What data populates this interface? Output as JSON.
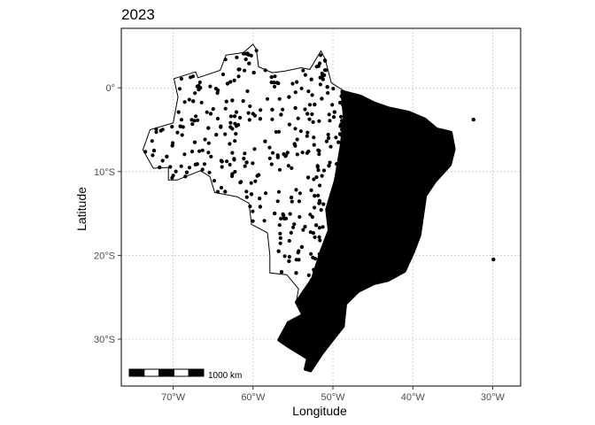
{
  "title": "2023",
  "axes": {
    "xlabel": "Longitude",
    "ylabel": "Latitude",
    "x_ticks": [
      {
        "value": -70,
        "label": "70°W"
      },
      {
        "value": -60,
        "label": "60°W"
      },
      {
        "value": -50,
        "label": "50°W"
      },
      {
        "value": -40,
        "label": "40°W"
      },
      {
        "value": -30,
        "label": "30°W"
      }
    ],
    "y_ticks": [
      {
        "value": 0,
        "label": "0°"
      },
      {
        "value": -10,
        "label": "10°S"
      },
      {
        "value": -20,
        "label": "20°S"
      },
      {
        "value": -30,
        "label": "30°S"
      }
    ],
    "xlim": [
      -76.5,
      -26.5
    ],
    "ylim": [
      -35.6,
      7.1
    ],
    "grid": true
  },
  "scale_bar": {
    "label": "1000 km"
  },
  "colors": {
    "points": "#000000",
    "outline": "#000000",
    "grid": "#c8c8c8",
    "tick_text": "#4d4d4d"
  },
  "chart_data": {
    "type": "scatter",
    "x_name": "Longitude",
    "y_name": "Latitude",
    "density_note": "dense point cluster covers eastern and southern Brazil",
    "outline": [
      [
        -73.8,
        -7.4
      ],
      [
        -72.9,
        -5.0
      ],
      [
        -70.0,
        -4.2
      ],
      [
        -69.4,
        -1.1
      ],
      [
        -69.9,
        1.1
      ],
      [
        -67.2,
        1.9
      ],
      [
        -66.9,
        1.2
      ],
      [
        -64.1,
        2.1
      ],
      [
        -63.4,
        3.9
      ],
      [
        -61.2,
        4.2
      ],
      [
        -60.0,
        5.2
      ],
      [
        -59.6,
        4.6
      ],
      [
        -59.3,
        2.5
      ],
      [
        -57.6,
        1.8
      ],
      [
        -56.0,
        2.0
      ],
      [
        -54.0,
        2.4
      ],
      [
        -52.9,
        2.2
      ],
      [
        -51.5,
        4.4
      ],
      [
        -51.0,
        3.5
      ],
      [
        -50.2,
        0.6
      ],
      [
        -48.4,
        -0.5
      ],
      [
        -46.5,
        -1.0
      ],
      [
        -44.8,
        -1.8
      ],
      [
        -43.0,
        -2.4
      ],
      [
        -40.5,
        -2.9
      ],
      [
        -38.5,
        -3.7
      ],
      [
        -37.0,
        -4.9
      ],
      [
        -35.2,
        -5.3
      ],
      [
        -34.8,
        -7.3
      ],
      [
        -35.3,
        -9.2
      ],
      [
        -37.2,
        -11.2
      ],
      [
        -38.4,
        -12.9
      ],
      [
        -39.1,
        -17.6
      ],
      [
        -39.9,
        -19.6
      ],
      [
        -41.0,
        -21.9
      ],
      [
        -43.1,
        -23.0
      ],
      [
        -44.9,
        -23.4
      ],
      [
        -46.8,
        -24.3
      ],
      [
        -48.4,
        -25.8
      ],
      [
        -48.7,
        -28.5
      ],
      [
        -50.2,
        -30.3
      ],
      [
        -51.4,
        -31.8
      ],
      [
        -52.8,
        -33.8
      ],
      [
        -53.5,
        -33.6
      ],
      [
        -53.2,
        -32.3
      ],
      [
        -55.6,
        -30.9
      ],
      [
        -56.8,
        -30.1
      ],
      [
        -55.6,
        -28.0
      ],
      [
        -53.8,
        -27.1
      ],
      [
        -54.6,
        -25.6
      ],
      [
        -54.3,
        -24.0
      ],
      [
        -55.8,
        -22.3
      ],
      [
        -57.9,
        -22.1
      ],
      [
        -57.9,
        -20.0
      ],
      [
        -58.2,
        -17.3
      ],
      [
        -60.2,
        -16.3
      ],
      [
        -60.5,
        -13.8
      ],
      [
        -62.0,
        -13.0
      ],
      [
        -64.8,
        -12.5
      ],
      [
        -65.4,
        -10.6
      ],
      [
        -66.6,
        -9.9
      ],
      [
        -69.5,
        -11.0
      ],
      [
        -70.6,
        -11.0
      ],
      [
        -70.6,
        -9.5
      ],
      [
        -72.5,
        -9.6
      ],
      [
        -73.8,
        -7.4
      ]
    ],
    "points": [
      [
        -32.4,
        -3.8
      ],
      [
        -29.9,
        -20.5
      ],
      [
        -60.5,
        2.9
      ],
      [
        -61.8,
        2.2
      ],
      [
        -60.9,
        3.4
      ],
      [
        -60.7,
        4.1
      ],
      [
        -59.9,
        1.8
      ],
      [
        -63.2,
        0.5
      ],
      [
        -64.4,
        -0.3
      ],
      [
        -66.8,
        -0.2
      ],
      [
        -67.5,
        -1.6
      ],
      [
        -65.3,
        -3.1
      ],
      [
        -62.3,
        -3.4
      ],
      [
        -60.0,
        -3.1
      ],
      [
        -59.1,
        -3.7
      ],
      [
        -57.6,
        -2.6
      ],
      [
        -56.5,
        -3.2
      ],
      [
        -54.7,
        -2.4
      ],
      [
        -53.2,
        -3.1
      ],
      [
        -52.3,
        -2.0
      ],
      [
        -51.4,
        -1.3
      ],
      [
        -50.7,
        0.1
      ],
      [
        -51.1,
        1.5
      ],
      [
        -51.8,
        2.6
      ],
      [
        -52.7,
        1.0
      ],
      [
        -55.5,
        -1.1
      ],
      [
        -57.0,
        0.6
      ],
      [
        -62.6,
        -1.5
      ],
      [
        -64.6,
        -5.6
      ],
      [
        -67.3,
        -6.5
      ],
      [
        -70.1,
        -6.9
      ],
      [
        -72.4,
        -7.5
      ],
      [
        -71.7,
        -9.5
      ],
      [
        -68.3,
        -10.1
      ],
      [
        -67.0,
        -9.1
      ],
      [
        -63.9,
        -8.8
      ],
      [
        -62.6,
        -10.3
      ],
      [
        -61.6,
        -11.3
      ],
      [
        -63.5,
        -12.4
      ],
      [
        -60.2,
        -12.7
      ],
      [
        -59.1,
        -14.2
      ],
      [
        -57.3,
        -15.0
      ],
      [
        -56.1,
        -15.6
      ],
      [
        -55.2,
        -13.1
      ],
      [
        -53.1,
        -10.7
      ],
      [
        -52.3,
        -12.9
      ],
      [
        -50.5,
        -9.3
      ],
      [
        -49.3,
        -6.5
      ],
      [
        -48.5,
        -4.9
      ],
      [
        -47.6,
        -7.1
      ],
      [
        -46.1,
        -9.2
      ],
      [
        -44.5,
        -10.5
      ],
      [
        -43.2,
        -7.4
      ],
      [
        -42.3,
        -5.1
      ],
      [
        -40.9,
        -3.6
      ],
      [
        -39.5,
        -4.3
      ],
      [
        -38.2,
        -6.6
      ],
      [
        -36.4,
        -7.2
      ],
      [
        -35.6,
        -8.4
      ],
      [
        -37.1,
        -10.0
      ],
      [
        -38.9,
        -12.6
      ],
      [
        -40.1,
        -14.9
      ],
      [
        -41.8,
        -17.0
      ],
      [
        -42.9,
        -19.5
      ],
      [
        -44.4,
        -21.0
      ],
      [
        -46.3,
        -23.1
      ],
      [
        -47.5,
        -22.0
      ],
      [
        -48.9,
        -20.3
      ],
      [
        -50.3,
        -22.5
      ],
      [
        -51.7,
        -24.8
      ],
      [
        -49.7,
        -26.9
      ],
      [
        -51.4,
        -28.6
      ],
      [
        -52.9,
        -29.4
      ],
      [
        -54.5,
        -29.8
      ],
      [
        -55.8,
        -30.5
      ],
      [
        -53.4,
        -31.6
      ],
      [
        -52.6,
        -33.0
      ],
      [
        -50.6,
        -18.5
      ],
      [
        -52.1,
        -16.4
      ],
      [
        -53.9,
        -19.0
      ],
      [
        -55.5,
        -20.7
      ],
      [
        -56.8,
        -19.5
      ],
      [
        -54.6,
        -22.1
      ],
      [
        -47.9,
        -15.8
      ],
      [
        -46.2,
        -14.3
      ],
      [
        -44.7,
        -16.6
      ],
      [
        -43.5,
        -13.0
      ],
      [
        -45.6,
        -18.9
      ],
      [
        -42.7,
        -22.6
      ],
      [
        -40.5,
        -20.4
      ],
      [
        -39.2,
        -16.1
      ],
      [
        -37.8,
        -9.6
      ],
      [
        -36.2,
        -5.8
      ],
      [
        -40.3,
        -9.1
      ],
      [
        -41.5,
        -11.8
      ],
      [
        -45.1,
        -5.9
      ],
      [
        -46.9,
        -2.5
      ],
      [
        -48.1,
        -1.4
      ],
      [
        -49.8,
        -2.9
      ],
      [
        -58.5,
        -6.4
      ],
      [
        -56.9,
        -8.3
      ],
      [
        -54.8,
        -6.7
      ],
      [
        -60.8,
        -8.9
      ],
      [
        -59.3,
        -10.4
      ],
      [
        -65.6,
        -4.8
      ],
      [
        -69.1,
        -4.6
      ],
      [
        -70.8,
        -8.2
      ]
    ]
  }
}
